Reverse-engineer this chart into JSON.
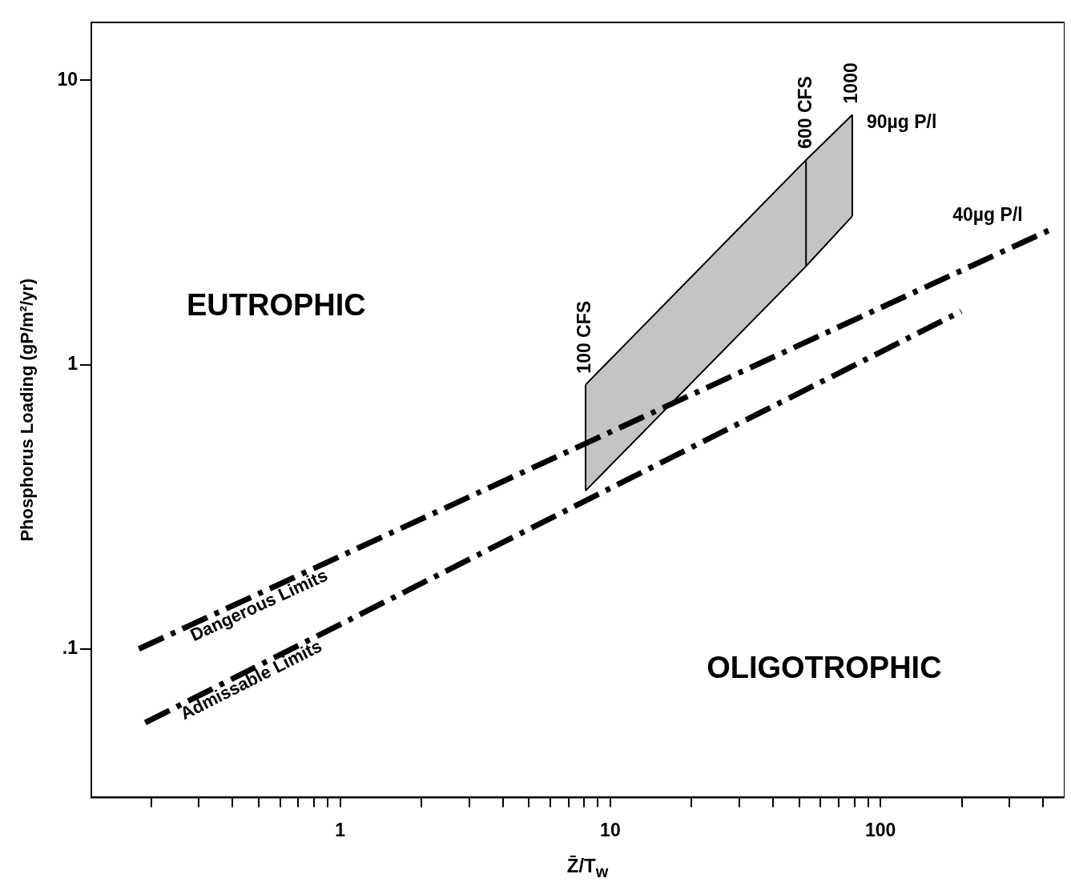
{
  "chart_data": {
    "type": "line",
    "xlabel": "Z̄/T$_{w}$",
    "ylabel": "Phosphorus Loading (gP/m²/yr)",
    "log": "xy",
    "grid": false,
    "legend": false,
    "marker": "none",
    "xlim": [
      0.12,
      480
    ],
    "ylim": [
      0.03,
      16
    ],
    "xticks": [
      {
        "value": 0.2,
        "label": null
      },
      {
        "value": 0.3,
        "label": null
      },
      {
        "value": 0.4,
        "label": null
      },
      {
        "value": 0.5,
        "label": null
      },
      {
        "value": 0.6,
        "label": null
      },
      {
        "value": 0.7,
        "label": null
      },
      {
        "value": 0.8,
        "label": null
      },
      {
        "value": 0.9,
        "label": null
      },
      1,
      {
        "value": 2,
        "label": null
      },
      {
        "value": 3,
        "label": null
      },
      {
        "value": 4,
        "label": null
      },
      {
        "value": 5,
        "label": null
      },
      {
        "value": 6,
        "label": null
      },
      {
        "value": 7,
        "label": null
      },
      {
        "value": 8,
        "label": null
      },
      {
        "value": 9,
        "label": null
      },
      10,
      {
        "value": 20,
        "label": null
      },
      {
        "value": 30,
        "label": null
      },
      {
        "value": 40,
        "label": null
      },
      {
        "value": 50,
        "label": null
      },
      {
        "value": 60,
        "label": null
      },
      {
        "value": 70,
        "label": null
      },
      {
        "value": 80,
        "label": null
      },
      {
        "value": 90,
        "label": null
      },
      100,
      {
        "value": 200,
        "label": null
      },
      {
        "value": 300,
        "label": null
      },
      {
        "value": 400,
        "label": null
      }
    ],
    "yticks": [
      {
        "value": 0.1,
        "label": ".1"
      },
      1,
      10
    ],
    "series": [
      {
        "name": "Dangerous Limits",
        "color": "#000000",
        "line_style": "dashed",
        "x": [
          0.18,
          430
        ],
        "values": [
          0.1,
          3.0
        ]
      },
      {
        "name": "Admissable Limits",
        "color": "#000000",
        "line_style": "dashed",
        "x": [
          0.19,
          199
        ],
        "values": [
          0.055,
          1.54
        ]
      },
      {
        "type": "line",
        "color": "#000000",
        "line_style": "solid",
        "x": [
          8.1,
          53,
          78.6
        ],
        "values": [
          0.36,
          2.22,
          3.33
        ]
      },
      {
        "type": "area",
        "color": "#c4c4c4",
        "x": [
          8.1,
          53,
          78.6
        ],
        "values": [
          0.85,
          5.25,
          7.57
        ]
      }
    ],
    "annotations": [
      "EUTROPHIC",
      "OLIGOTROPHIC",
      {
        "text": "100 CFS",
        "x": 8.1,
        "y": 0.85
      },
      {
        "text": "600 CFS",
        "x": 53,
        "y": 5.25
      },
      {
        "text": "1000",
        "x": 78.6,
        "y": 7.57
      },
      {
        "text": "90µg P/l",
        "x": 78.6,
        "y": 7.57
      },
      "40µg P/l"
    ]
  }
}
